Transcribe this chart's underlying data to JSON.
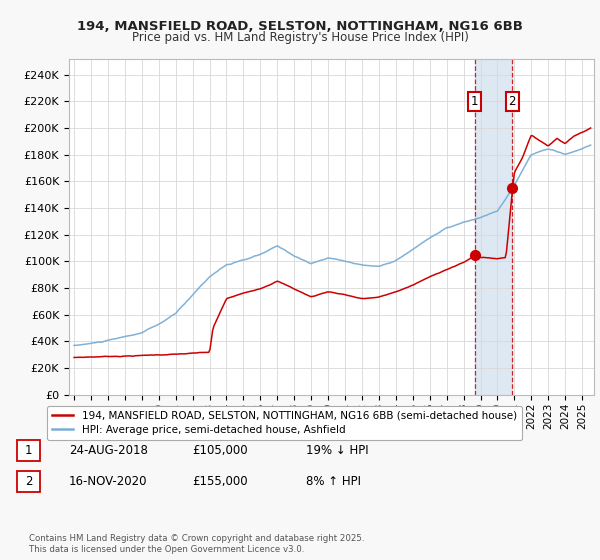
{
  "title": "194, MANSFIELD ROAD, SELSTON, NOTTINGHAM, NG16 6BB",
  "subtitle": "Price paid vs. HM Land Registry's House Price Index (HPI)",
  "ylabel_ticks": [
    "£0",
    "£20K",
    "£40K",
    "£60K",
    "£80K",
    "£100K",
    "£120K",
    "£140K",
    "£160K",
    "£180K",
    "£200K",
    "£220K",
    "£240K"
  ],
  "ytick_values": [
    0,
    20000,
    40000,
    60000,
    80000,
    100000,
    120000,
    140000,
    160000,
    180000,
    200000,
    220000,
    240000
  ],
  "ylim": [
    0,
    252000
  ],
  "xlim_start": 1994.7,
  "xlim_end": 2025.7,
  "xticks": [
    1995,
    1996,
    1997,
    1998,
    1999,
    2000,
    2001,
    2002,
    2003,
    2004,
    2005,
    2006,
    2007,
    2008,
    2009,
    2010,
    2011,
    2012,
    2013,
    2014,
    2015,
    2016,
    2017,
    2018,
    2019,
    2020,
    2021,
    2022,
    2023,
    2024,
    2025
  ],
  "hpi_color": "#7aadd4",
  "price_color": "#cc0000",
  "marker1_date": 2018.65,
  "marker2_date": 2020.88,
  "marker1_price": 105000,
  "marker2_price": 155000,
  "legend_label1": "194, MANSFIELD ROAD, SELSTON, NOTTINGHAM, NG16 6BB (semi-detached house)",
  "legend_label2": "HPI: Average price, semi-detached house, Ashfield",
  "annotation1": "1",
  "annotation2": "2",
  "table_row1": [
    "1",
    "24-AUG-2018",
    "£105,000",
    "19% ↓ HPI"
  ],
  "table_row2": [
    "2",
    "16-NOV-2020",
    "£155,000",
    "8% ↑ HPI"
  ],
  "copyright_text": "Contains HM Land Registry data © Crown copyright and database right 2025.\nThis data is licensed under the Open Government Licence v3.0.",
  "background_color": "#f8f8f8",
  "plot_bg_color": "#ffffff",
  "grid_color": "#d8d8d8",
  "shade_color": "#dde8f3"
}
